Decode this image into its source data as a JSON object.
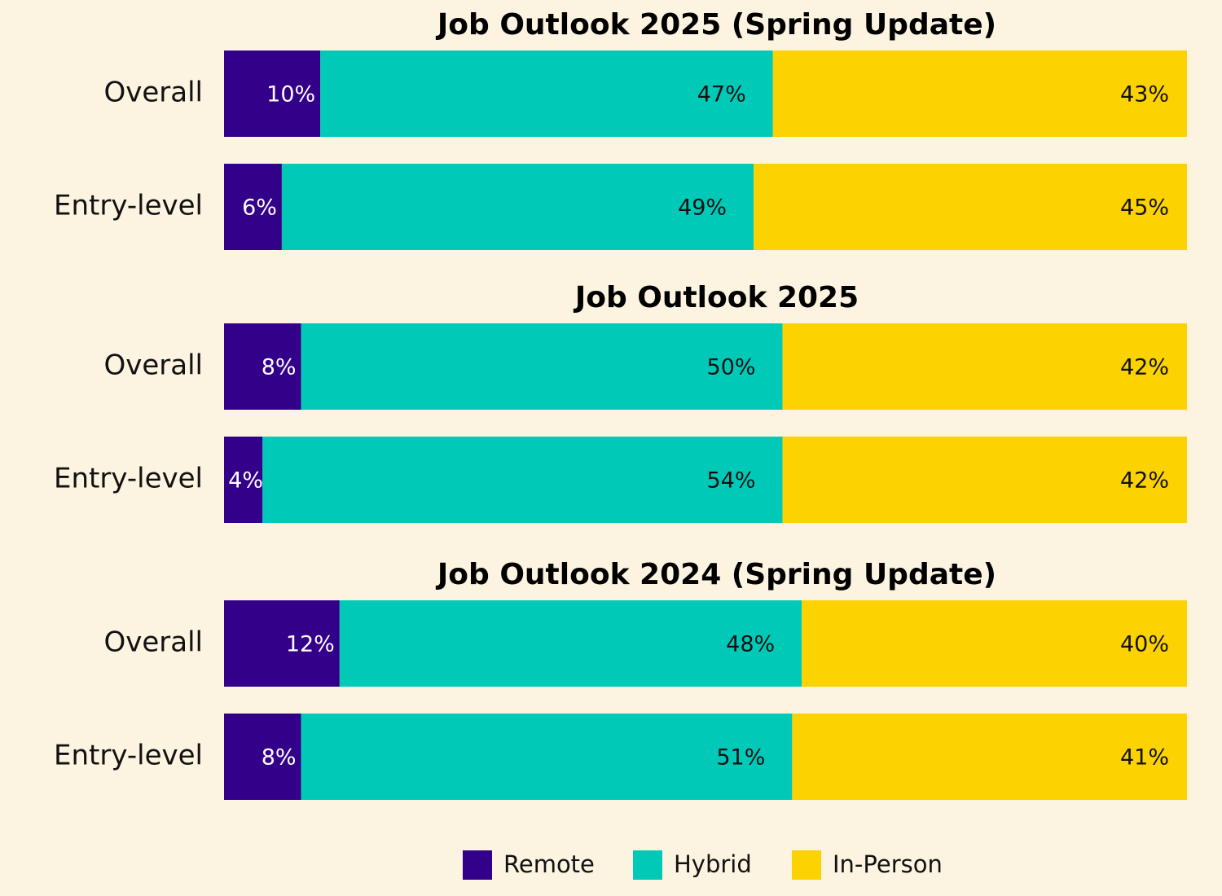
{
  "chart_data": {
    "type": "bar",
    "orientation": "horizontal",
    "stacked": true,
    "xlim": [
      0,
      100
    ],
    "groups": [
      {
        "title": "Job Outlook 2025 (Spring Update)",
        "categories": [
          "Overall",
          "Entry-level"
        ]
      },
      {
        "title": "Job Outlook 2025",
        "categories": [
          "Overall",
          "Entry-level"
        ]
      },
      {
        "title": "Job Outlook 2024 (Spring Update)",
        "categories": [
          "Overall",
          "Entry-level"
        ]
      }
    ],
    "series": [
      {
        "name": "Remote",
        "color": "#33008a",
        "values": [
          10,
          6,
          8,
          4,
          12,
          8
        ],
        "value_labels": [
          "10%",
          "6%",
          "8%",
          "4%",
          "12%",
          "8%"
        ]
      },
      {
        "name": "Hybrid",
        "color": "#00c9b7",
        "values": [
          47,
          49,
          50,
          54,
          48,
          51
        ],
        "value_labels": [
          "47%",
          "49%",
          "50%",
          "54%",
          "48%",
          "51%"
        ]
      },
      {
        "name": "In-Person",
        "color": "#fcd200",
        "values": [
          43,
          45,
          42,
          42,
          40,
          41
        ],
        "value_labels": [
          "43%",
          "45%",
          "42%",
          "42%",
          "40%",
          "41%"
        ]
      }
    ],
    "legend": "bottom"
  }
}
